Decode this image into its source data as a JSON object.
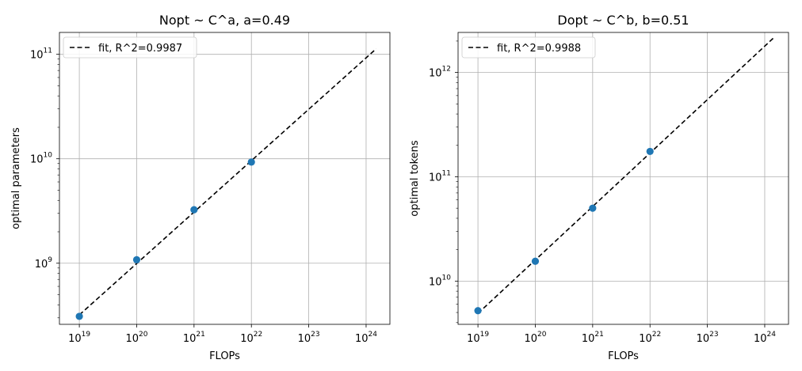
{
  "chart_data": [
    {
      "type": "scatter",
      "title": "Nopt ~ C^a, a=0.49",
      "xlabel": "FLOPs",
      "ylabel": "optimal parameters",
      "xscale": "log",
      "yscale": "log",
      "xlim": [
        4.5e+18,
        2.6e+24
      ],
      "ylim": [
        260000000.0,
        162000000000.0
      ],
      "x_ticks": [
        {
          "base": "10",
          "exp": "19",
          "value": 1e+19
        },
        {
          "base": "10",
          "exp": "20",
          "value": 1e+20
        },
        {
          "base": "10",
          "exp": "21",
          "value": 1e+21
        },
        {
          "base": "10",
          "exp": "22",
          "value": 1e+22
        },
        {
          "base": "10",
          "exp": "23",
          "value": 1e+23
        },
        {
          "base": "10",
          "exp": "24",
          "value": 1e+24
        }
      ],
      "y_ticks": [
        {
          "base": "10",
          "exp": "9",
          "value": 1000000000.0
        },
        {
          "base": "10",
          "exp": "10",
          "value": 10000000000.0
        },
        {
          "base": "10",
          "exp": "11",
          "value": 100000000000.0
        }
      ],
      "grid": true,
      "legend": {
        "placement": "top-left",
        "label": "fit, R^2=0.9987"
      },
      "points": {
        "color": "#1f77b4",
        "x": [
          1e+19,
          1e+20,
          1e+21,
          1e+22
        ],
        "y": [
          310000000.0,
          1080000000.0,
          3250000000.0,
          9300000000.0
        ]
      },
      "fit": {
        "color": "#000000",
        "x": [
          1e+19,
          1.5e+24
        ],
        "y": [
          320000000.0,
          113000000000.0
        ]
      }
    },
    {
      "type": "scatter",
      "title": "Dopt ~ C^b, b=0.51",
      "xlabel": "FLOPs",
      "ylabel": "optimal tokens",
      "xscale": "log",
      "yscale": "log",
      "xlim": [
        4.5e+18,
        2.6e+24
      ],
      "ylim": [
        3850000000.0,
        2420000000000.0
      ],
      "x_ticks": [
        {
          "base": "10",
          "exp": "19",
          "value": 1e+19
        },
        {
          "base": "10",
          "exp": "20",
          "value": 1e+20
        },
        {
          "base": "10",
          "exp": "21",
          "value": 1e+21
        },
        {
          "base": "10",
          "exp": "22",
          "value": 1e+22
        },
        {
          "base": "10",
          "exp": "23",
          "value": 1e+23
        },
        {
          "base": "10",
          "exp": "24",
          "value": 1e+24
        }
      ],
      "y_ticks": [
        {
          "base": "10",
          "exp": "10",
          "value": 10000000000.0
        },
        {
          "base": "10",
          "exp": "11",
          "value": 100000000000.0
        },
        {
          "base": "10",
          "exp": "12",
          "value": 1000000000000.0
        }
      ],
      "grid": true,
      "legend": {
        "placement": "top-left",
        "label": "fit, R^2=0.9988"
      },
      "points": {
        "color": "#1f77b4",
        "x": [
          1e+19,
          1e+20,
          1e+21,
          1e+22
        ],
        "y": [
          5200000000.0,
          15500000000.0,
          50000000000.0,
          175000000000.0
        ]
      },
      "fit": {
        "color": "#000000",
        "x": [
          1e+19,
          1.5e+24
        ],
        "y": [
          4900000000.0,
          2200000000000.0
        ]
      }
    }
  ]
}
